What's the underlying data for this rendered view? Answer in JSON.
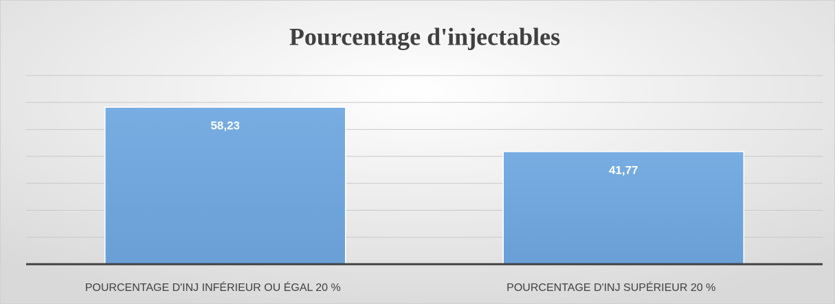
{
  "chart_data": {
    "type": "bar",
    "title": "Pourcentage d'injectables",
    "categories": [
      "POURCENTAGE D'INJ INFÉRIEUR OU ÉGAL 20 %",
      "POURCENTAGE D'INJ SUPÉRIEUR 20 %"
    ],
    "values": [
      58.23,
      41.77
    ],
    "value_labels": [
      "58,23",
      "41,77"
    ],
    "color": "#6fa5db",
    "ylim": [
      0,
      70
    ],
    "yticks": [
      0,
      10,
      20,
      30,
      40,
      50,
      60,
      70
    ],
    "grid": true
  }
}
